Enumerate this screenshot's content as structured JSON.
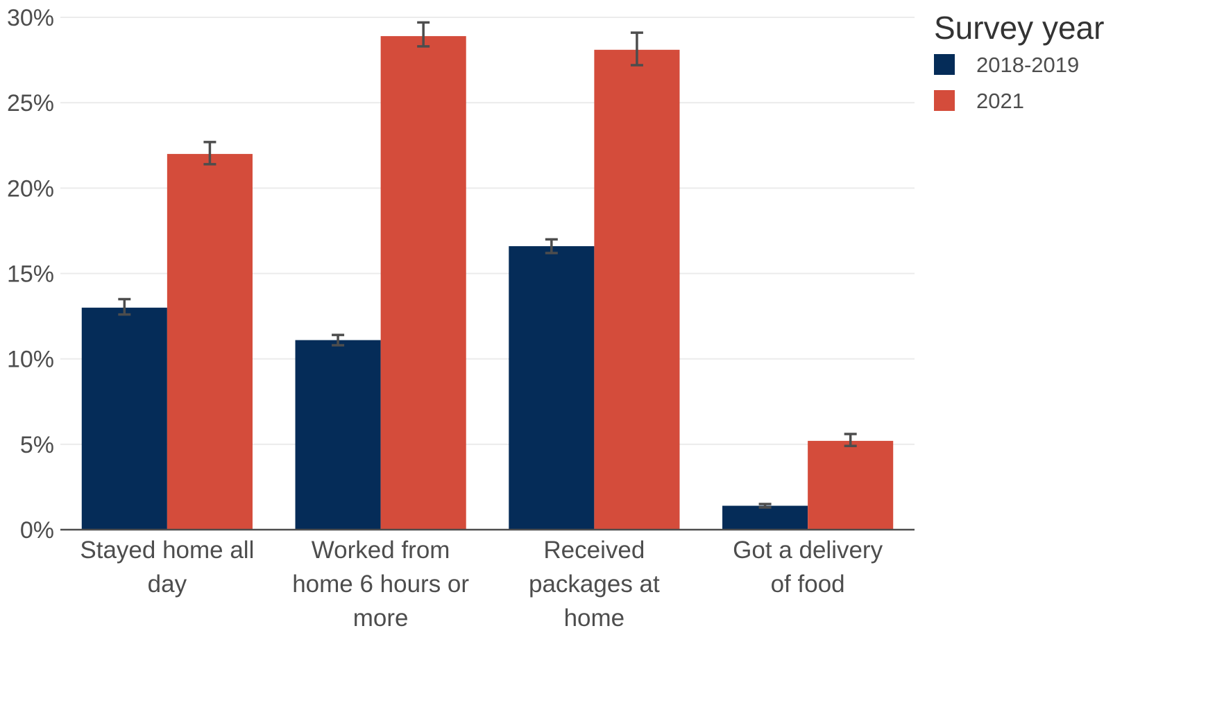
{
  "chart_data": {
    "type": "bar",
    "title": "",
    "xlabel": "",
    "ylabel": "",
    "categories": [
      [
        "Stayed home all",
        "day"
      ],
      [
        "Worked from",
        "home 6 hours or",
        "more"
      ],
      [
        "Received",
        "packages at",
        "home"
      ],
      [
        "Got a delivery",
        "of food"
      ]
    ],
    "series": [
      {
        "name": "2018-2019",
        "color": "#052c58",
        "values": [
          13.0,
          11.1,
          16.6,
          1.4
        ],
        "error_low": [
          12.6,
          10.8,
          16.2,
          1.3
        ],
        "error_high": [
          13.5,
          11.4,
          17.0,
          1.5
        ]
      },
      {
        "name": "2021",
        "color": "#d44c3b",
        "values": [
          22.0,
          28.9,
          28.1,
          5.2
        ],
        "error_low": [
          21.4,
          28.3,
          27.2,
          4.9
        ],
        "error_high": [
          22.7,
          29.7,
          29.1,
          5.6
        ]
      }
    ],
    "ylim": [
      0,
      30
    ],
    "yticks": [
      0,
      5,
      10,
      15,
      20,
      25,
      30
    ],
    "ytick_labels": [
      "0%",
      "5%",
      "10%",
      "15%",
      "20%",
      "25%",
      "30%"
    ],
    "grid": "horizontal",
    "error_bar_color": "#4d4d4d",
    "legend": {
      "title": "Survey year",
      "position": "top-right"
    }
  }
}
